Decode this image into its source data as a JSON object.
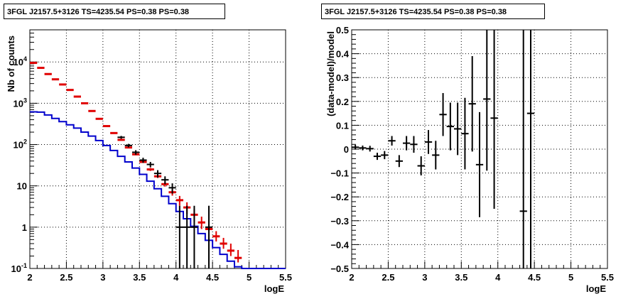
{
  "panels": {
    "left_title": "3FGL J2157.5+3126 TS=4235.54 PS=0.38 PS=0.38",
    "right_title": "3FGL J2157.5+3126 TS=4235.54 PS=0.38 PS=0.38"
  },
  "chart_data": [
    {
      "type": "line",
      "title": "3FGL J2157.5+3126 TS=4235.54 PS=0.38 PS=0.38",
      "xlabel": "logE",
      "ylabel": "Nb of counts",
      "xlim": [
        2,
        5.5
      ],
      "ylim": [
        0.1,
        60000
      ],
      "yscale": "log",
      "grid": true,
      "x_ticks": [
        "2",
        "2.5",
        "3",
        "3.5",
        "4",
        "4.5",
        "5",
        "5.5"
      ],
      "y_ticks": [
        "10^-1",
        "1",
        "10",
        "10^2",
        "10^3",
        "10^4"
      ],
      "colors": {
        "data": "#000000",
        "model_total": "#e00000",
        "source_model": "#0000cc"
      },
      "bin_edges": [
        2.0,
        2.1,
        2.2,
        2.3,
        2.4,
        2.5,
        2.6,
        2.7,
        2.8,
        2.9,
        3.0,
        3.1,
        3.2,
        3.3,
        3.4,
        3.5,
        3.6,
        3.7,
        3.8,
        3.9,
        4.0,
        4.1,
        4.2,
        4.3,
        4.4,
        4.5,
        4.6,
        4.7,
        4.8,
        4.9,
        5.0,
        5.1,
        5.2,
        5.3,
        5.4,
        5.5
      ],
      "series": [
        {
          "values": [
            620,
            610,
            520,
            430,
            360,
            300,
            250,
            200,
            160,
            125,
            95,
            72,
            52,
            38,
            27,
            19,
            13,
            8.5,
            5.6,
            3.7,
            2.4,
            1.6,
            1.05,
            0.7,
            0.48,
            0.32,
            0.22,
            0.15,
            0.11,
            0.1,
            0.1,
            0.1,
            0.1,
            0.1,
            0.1
          ]
        },
        {
          "x": [
            2.05,
            2.15,
            2.25,
            2.35,
            2.45,
            2.55,
            2.65,
            2.75,
            2.85,
            2.95,
            3.05,
            3.15,
            3.25,
            3.35,
            3.45,
            3.55,
            3.65,
            3.75,
            3.85,
            3.95,
            4.05,
            4.15,
            4.25,
            4.35,
            4.45,
            4.55,
            4.65,
            4.75,
            4.85
          ],
          "values": [
            9500,
            7200,
            5100,
            3800,
            2850,
            2100,
            1450,
            1000,
            650,
            420,
            280,
            190,
            130,
            85,
            58,
            38,
            25,
            17,
            11,
            7,
            4.5,
            3.0,
            2.0,
            1.3,
            0.9,
            0.6,
            0.4,
            0.27,
            0.18
          ],
          "err_lo": [
            9300,
            7050,
            5000,
            3700,
            2800,
            2060,
            1420,
            980,
            635,
            410,
            272,
            184,
            125,
            81,
            55,
            36,
            23,
            15.5,
            9.6,
            5.8,
            3.3,
            2.1,
            1.4,
            0.9,
            0.65,
            0.45,
            0.3,
            0.2,
            0.14
          ],
          "err_hi": [
            9700,
            7350,
            5200,
            3900,
            2900,
            2140,
            1480,
            1020,
            665,
            430,
            288,
            196,
            135,
            89,
            61,
            40,
            27,
            18.5,
            12.5,
            8.2,
            5.7,
            4.0,
            2.7,
            1.8,
            1.2,
            0.8,
            0.55,
            0.4,
            0.28
          ]
        },
        {
          "x": [
            3.25,
            3.35,
            3.45,
            3.55,
            3.65,
            3.75,
            3.85,
            3.95,
            4.05,
            4.15,
            4.25,
            4.45
          ],
          "values": [
            150,
            95,
            65,
            42,
            33,
            20,
            14,
            9,
            1,
            1,
            1,
            1
          ],
          "err_lo": [
            138,
            86,
            57,
            36,
            28,
            16,
            11,
            6.5,
            0.1,
            0.1,
            0.1,
            0.1
          ],
          "err_hi": [
            162,
            104,
            73,
            48,
            38,
            24,
            17,
            11.5,
            3.3,
            3.3,
            3.3,
            3.3
          ]
        }
      ]
    },
    {
      "type": "scatter",
      "title": "3FGL J2157.5+3126 TS=4235.54 PS=0.38 PS=0.38",
      "xlabel": "logE",
      "ylabel": "(data-model)/model",
      "xlim": [
        2,
        5.5
      ],
      "ylim": [
        -0.5,
        0.5
      ],
      "grid": true,
      "x_ticks": [
        "2",
        "2.5",
        "3",
        "3.5",
        "4",
        "4.5",
        "5",
        "5.5"
      ],
      "y_ticks": [
        "-0.5",
        "-0.4",
        "-0.3",
        "-0.2",
        "-0.1",
        "0",
        "0.1",
        "0.2",
        "0.3",
        "0.4",
        "0.5"
      ],
      "x": [
        2.05,
        2.15,
        2.25,
        2.35,
        2.45,
        2.55,
        2.65,
        2.75,
        2.85,
        2.95,
        3.05,
        3.15,
        3.25,
        3.35,
        3.45,
        3.55,
        3.65,
        3.75,
        3.85,
        3.95,
        4.35,
        4.45
      ],
      "y": [
        0.008,
        0.005,
        0.002,
        -0.03,
        -0.025,
        0.035,
        -0.05,
        0.025,
        0.02,
        -0.07,
        0.03,
        -0.025,
        0.145,
        0.095,
        0.085,
        0.065,
        0.19,
        -0.065,
        0.21,
        0.13,
        -0.26,
        0.15
      ],
      "err": [
        0.01,
        0.01,
        0.012,
        0.015,
        0.017,
        0.02,
        0.025,
        0.03,
        0.035,
        0.04,
        0.05,
        0.06,
        0.09,
        0.1,
        0.11,
        0.15,
        0.2,
        0.22,
        0.3,
        0.38,
        0.9,
        0.9
      ]
    }
  ]
}
